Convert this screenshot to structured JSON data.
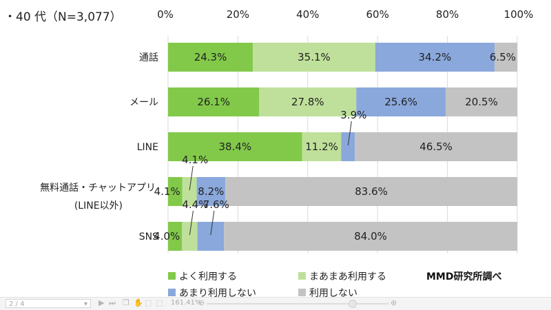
{
  "chart_data": {
    "type": "stacked-bar-horizontal",
    "title": "・40 代（N=3,077）",
    "x_ticks": [
      "0%",
      "20%",
      "40%",
      "60%",
      "80%",
      "100%"
    ],
    "xlim": [
      0,
      100
    ],
    "grid": true,
    "legend_position": "bottom",
    "credit": "MMD研究所調べ",
    "categories": [
      {
        "label": "通話",
        "label2": ""
      },
      {
        "label": "メール",
        "label2": ""
      },
      {
        "label": "LINE",
        "label2": ""
      },
      {
        "label": "無料通話・チャットアプリ",
        "label2": "(LINE以外)"
      },
      {
        "label": "SNS",
        "label2": ""
      }
    ],
    "series": [
      {
        "name": "よく利用する",
        "color": "#82c94a",
        "values": [
          24.3,
          26.1,
          38.4,
          4.1,
          4.0
        ],
        "labels": [
          "24.3%",
          "26.1%",
          "38.4%",
          "4.1%",
          "4.0%"
        ]
      },
      {
        "name": "まあまあ利用する",
        "color": "#bfe09a",
        "values": [
          35.1,
          27.8,
          11.2,
          4.1,
          4.4
        ],
        "labels": [
          "35.1%",
          "27.8%",
          "11.2%",
          "4.1%",
          "4.4%"
        ]
      },
      {
        "name": "あまり利用しない",
        "color": "#8aa8dc",
        "values": [
          34.2,
          25.6,
          3.9,
          8.2,
          7.6
        ],
        "labels": [
          "34.2%",
          "25.6%",
          "3.9%",
          "8.2%",
          "7.6%"
        ]
      },
      {
        "name": "利用しない",
        "color": "#c3c3c3",
        "values": [
          6.5,
          20.5,
          46.5,
          83.6,
          84.0
        ],
        "labels": [
          "6.5%",
          "20.5%",
          "46.5%",
          "83.6%",
          "84.0%"
        ]
      }
    ]
  },
  "viewer": {
    "page": "2 / 4",
    "zoom": "161.41%",
    "icons": [
      "play-icon",
      "last-page-icon",
      "copy-icon",
      "tool-icon",
      "tool-icon",
      "tool-icon",
      "zoom-out-icon",
      "zoom-in-icon"
    ]
  }
}
